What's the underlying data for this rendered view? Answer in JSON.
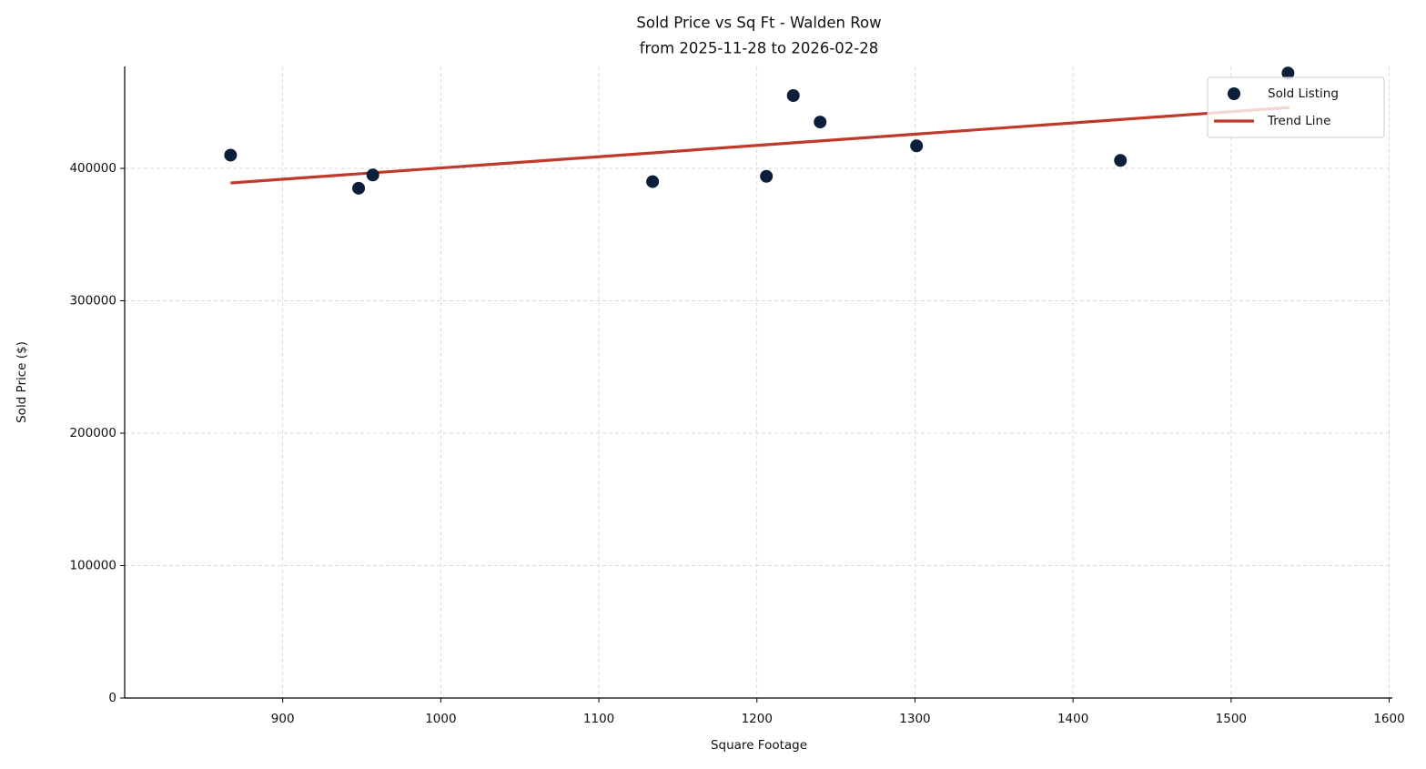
{
  "chart_data": {
    "type": "scatter",
    "title": "Sold Price vs Sq Ft - Walden Row",
    "subtitle": "from 2025-11-28 to 2026-02-28",
    "x_label": "Square Footage",
    "y_label": "Sold Price ($)",
    "xlim": [
      800,
      1602
    ],
    "ylim": [
      0,
      477000
    ],
    "xticks": [
      900,
      1000,
      1100,
      1200,
      1300,
      1400,
      1500,
      1600
    ],
    "yticks": [
      0,
      100000,
      200000,
      300000,
      400000
    ],
    "grid": true,
    "legend": "upper right",
    "series": [
      {
        "name": "Sold Listing",
        "color": "#0b1f3a",
        "style": "points",
        "x": [
          867,
          948,
          957,
          1134,
          1206,
          1223,
          1240,
          1301,
          1430,
          1536
        ],
        "values": [
          410000,
          385000,
          395000,
          390000,
          394000,
          455000,
          435000,
          417000,
          406000,
          472000
        ]
      },
      {
        "name": "Trend Line",
        "color": "#c0392b",
        "style": "line",
        "x": [
          867,
          1537
        ],
        "values": [
          389000,
          446000
        ]
      }
    ]
  }
}
